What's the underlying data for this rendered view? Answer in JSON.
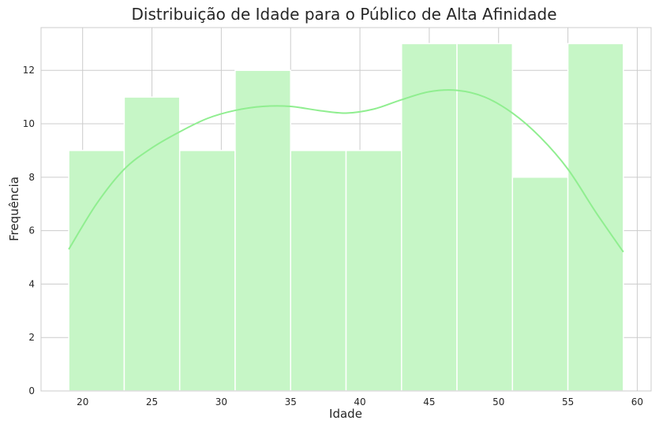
{
  "chart_data": {
    "type": "bar",
    "title": "Distribuição de Idade para o Público de Alta Afinidade",
    "xlabel": "Idade",
    "ylabel": "Frequência",
    "xlim": [
      17,
      61
    ],
    "ylim": [
      0,
      13.6
    ],
    "xticks": [
      20,
      25,
      30,
      35,
      40,
      45,
      50,
      55,
      60
    ],
    "yticks": [
      0,
      2,
      4,
      6,
      8,
      10,
      12
    ],
    "bins": [
      {
        "start": 19,
        "end": 23,
        "count": 9
      },
      {
        "start": 23,
        "end": 27,
        "count": 11
      },
      {
        "start": 27,
        "end": 31,
        "count": 9
      },
      {
        "start": 31,
        "end": 35,
        "count": 12
      },
      {
        "start": 35,
        "end": 39,
        "count": 9
      },
      {
        "start": 39,
        "end": 43,
        "count": 9
      },
      {
        "start": 43,
        "end": 47,
        "count": 13
      },
      {
        "start": 47,
        "end": 51,
        "count": 13
      },
      {
        "start": 51,
        "end": 55,
        "count": 8
      },
      {
        "start": 55,
        "end": 59,
        "count": 13
      }
    ],
    "kde": {
      "x": [
        19,
        21,
        23,
        25,
        27,
        29,
        31,
        33,
        35,
        37,
        39,
        41,
        43,
        45,
        47,
        49,
        51,
        53,
        55,
        57,
        59
      ],
      "y": [
        5.3,
        7.0,
        8.3,
        9.1,
        9.7,
        10.2,
        10.5,
        10.65,
        10.65,
        10.5,
        10.4,
        10.55,
        10.9,
        11.2,
        11.25,
        11.0,
        10.4,
        9.5,
        8.3,
        6.7,
        5.2
      ]
    },
    "grid": true,
    "colors": {
      "bar_fill": "#c6f6c6",
      "kde_line": "#90ee90",
      "grid": "#cccccc"
    }
  }
}
